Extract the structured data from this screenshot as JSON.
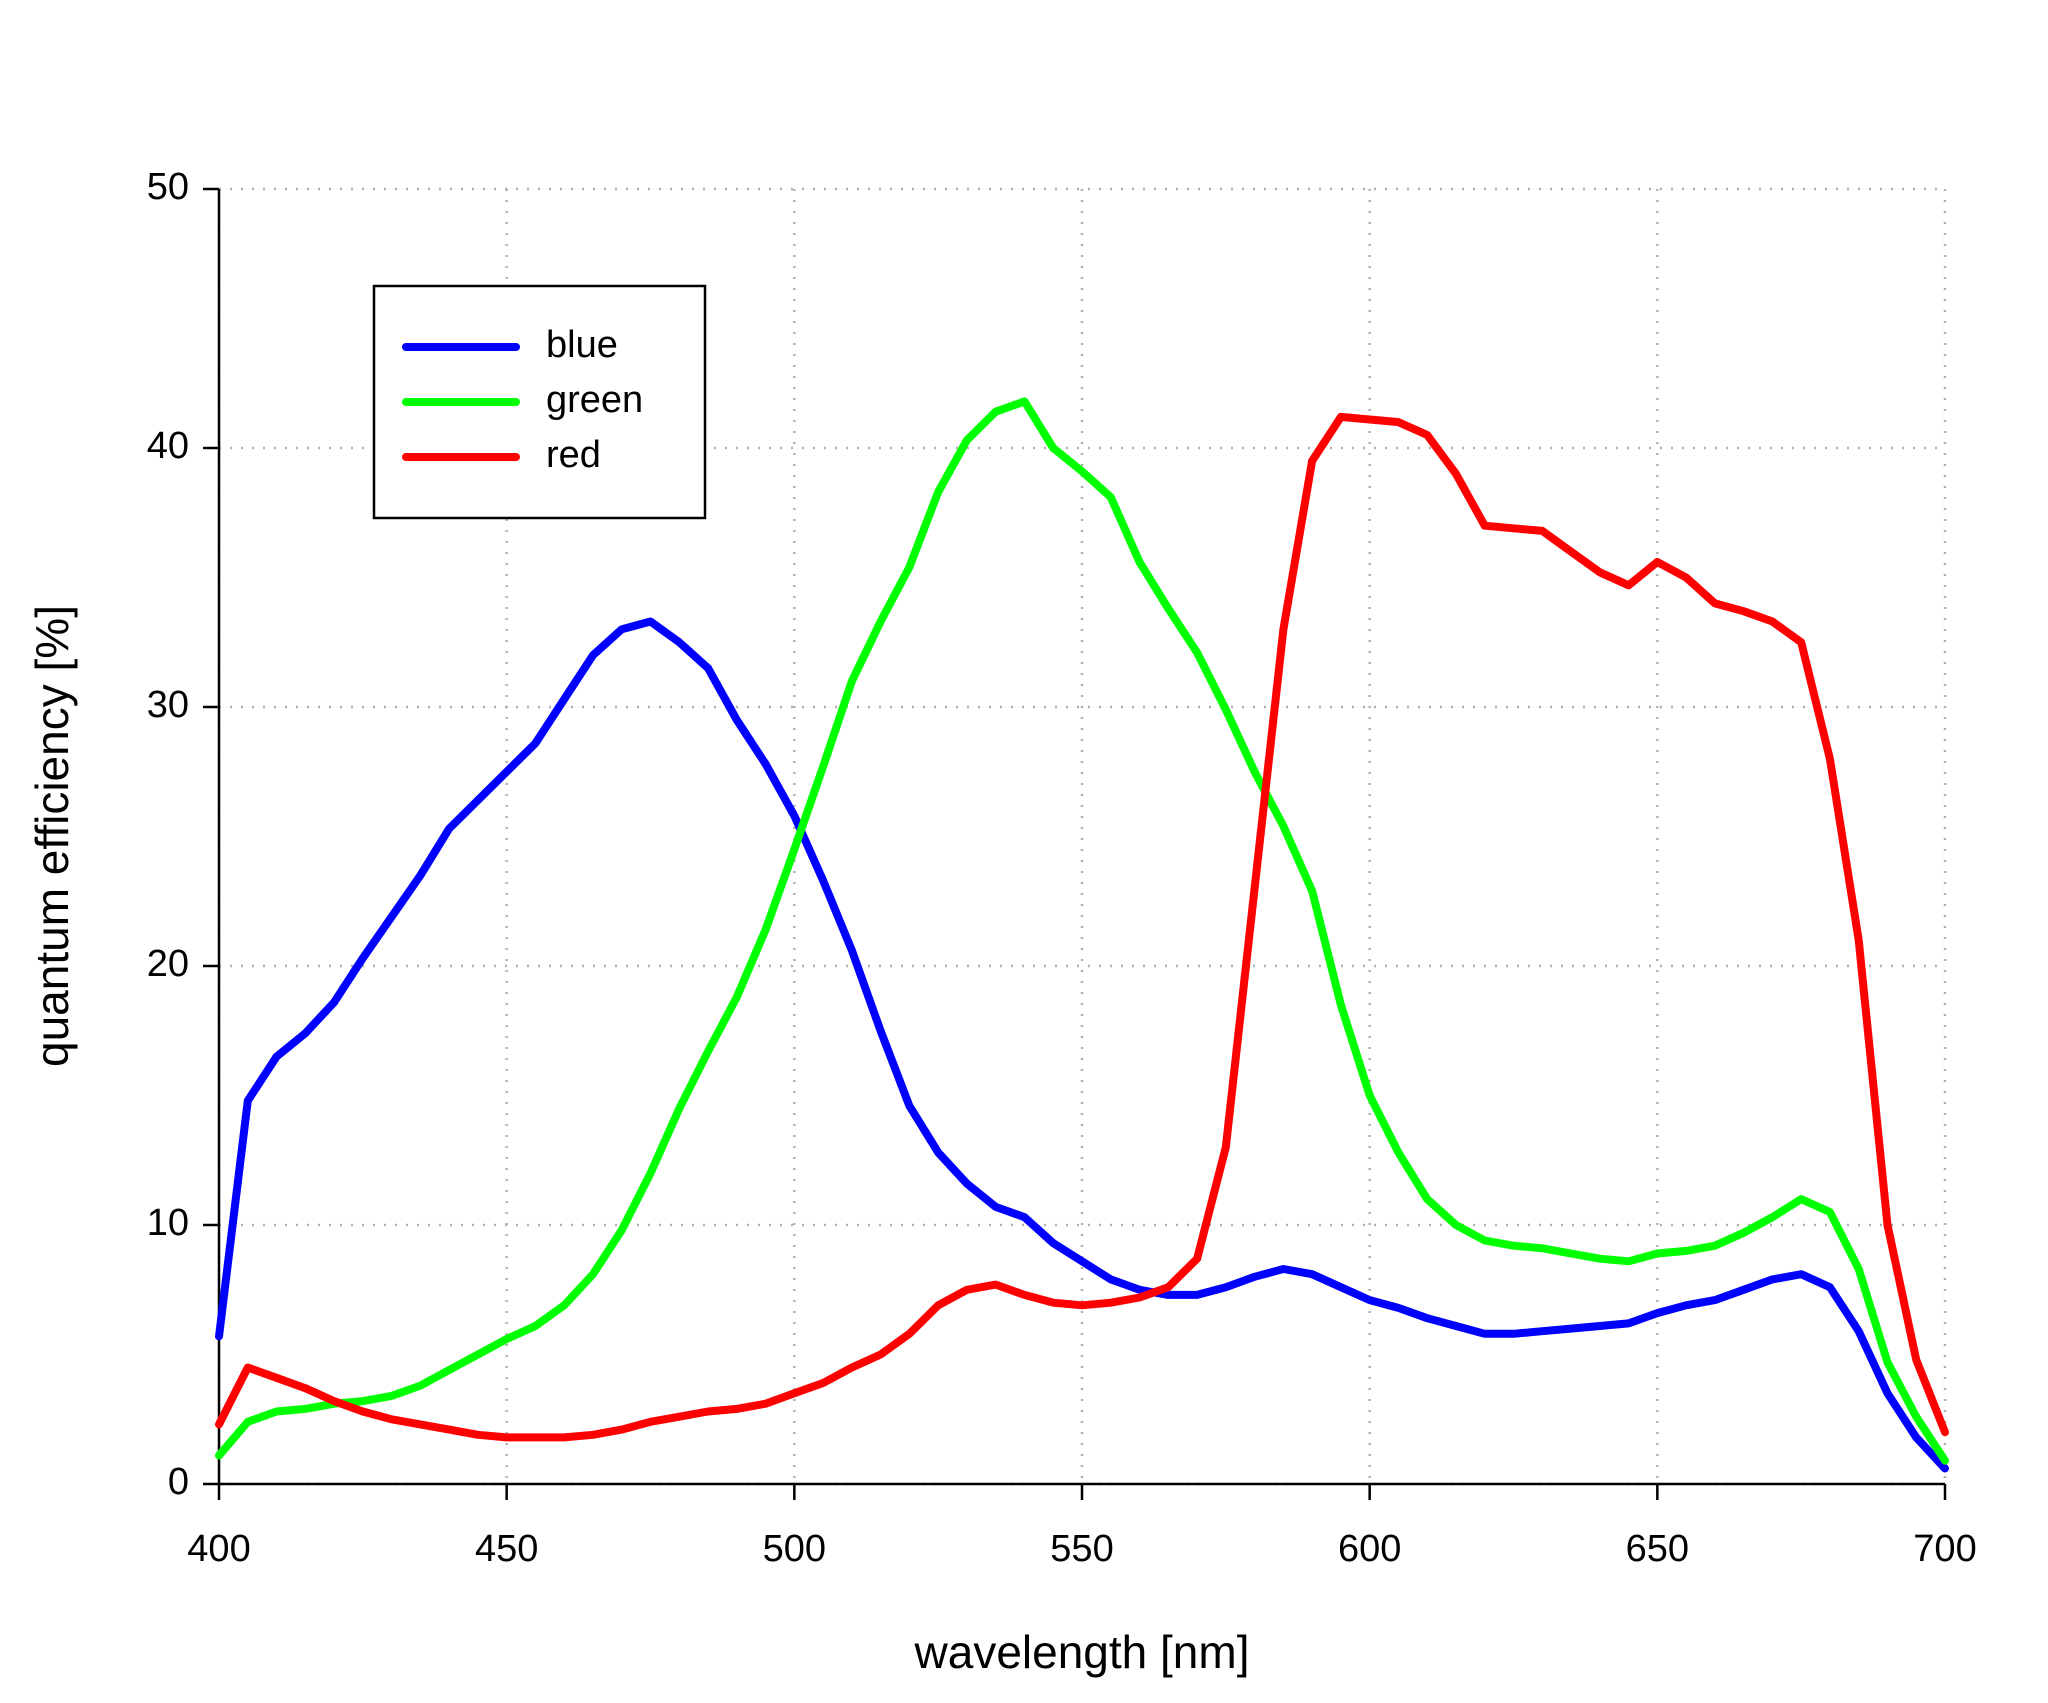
{
  "chart_data": {
    "type": "line",
    "xlabel": "wavelength [nm]",
    "ylabel": "quantum efficiency [%]",
    "x": [
      400,
      405,
      410,
      415,
      420,
      425,
      430,
      435,
      440,
      445,
      450,
      455,
      460,
      465,
      470,
      475,
      480,
      485,
      490,
      495,
      500,
      505,
      510,
      515,
      520,
      525,
      530,
      535,
      540,
      545,
      550,
      555,
      560,
      565,
      570,
      575,
      580,
      585,
      590,
      595,
      600,
      605,
      610,
      615,
      620,
      625,
      630,
      635,
      640,
      645,
      650,
      655,
      660,
      665,
      670,
      675,
      680,
      685,
      690,
      695,
      700
    ],
    "series": [
      {
        "name": "blue",
        "color": "#0000ff",
        "values": [
          5.7,
          14.8,
          16.5,
          17.4,
          18.6,
          20.3,
          21.9,
          23.5,
          25.3,
          26.4,
          27.5,
          28.6,
          30.3,
          32.0,
          33.0,
          33.3,
          32.5,
          31.5,
          29.5,
          27.8,
          25.8,
          23.3,
          20.6,
          17.5,
          14.6,
          12.8,
          11.6,
          10.7,
          10.3,
          9.3,
          8.6,
          7.9,
          7.5,
          7.3,
          7.3,
          7.6,
          8.0,
          8.3,
          8.1,
          7.6,
          7.1,
          6.8,
          6.4,
          6.1,
          5.8,
          5.8,
          5.9,
          6.0,
          6.1,
          6.2,
          6.6,
          6.9,
          7.1,
          7.5,
          7.9,
          8.1,
          7.6,
          5.9,
          3.5,
          1.8,
          0.6
        ]
      },
      {
        "name": "green",
        "color": "#00ff00",
        "values": [
          1.1,
          2.4,
          2.8,
          2.9,
          3.1,
          3.2,
          3.4,
          3.8,
          4.4,
          5.0,
          5.6,
          6.1,
          6.9,
          8.1,
          9.8,
          12.0,
          14.5,
          16.7,
          18.8,
          21.4,
          24.5,
          27.7,
          31.0,
          33.3,
          35.4,
          38.3,
          40.3,
          41.4,
          41.8,
          40.0,
          39.1,
          38.1,
          35.6,
          33.8,
          32.1,
          29.9,
          27.5,
          25.4,
          22.9,
          18.5,
          15.0,
          12.8,
          11.0,
          10.0,
          9.4,
          9.2,
          9.1,
          8.9,
          8.7,
          8.6,
          8.9,
          9.0,
          9.2,
          9.7,
          10.3,
          11.0,
          10.5,
          8.3,
          4.7,
          2.6,
          0.9
        ]
      },
      {
        "name": "red",
        "color": "#ff0000",
        "values": [
          2.3,
          4.5,
          4.1,
          3.7,
          3.2,
          2.8,
          2.5,
          2.3,
          2.1,
          1.9,
          1.8,
          1.8,
          1.8,
          1.9,
          2.1,
          2.4,
          2.6,
          2.8,
          2.9,
          3.1,
          3.5,
          3.9,
          4.5,
          5.0,
          5.8,
          6.9,
          7.5,
          7.7,
          7.3,
          7.0,
          6.9,
          7.0,
          7.2,
          7.6,
          8.7,
          13.0,
          23.0,
          33.0,
          39.5,
          41.2,
          41.1,
          41.0,
          40.5,
          39.0,
          37.0,
          36.9,
          36.8,
          36.0,
          35.2,
          34.7,
          35.6,
          35.0,
          34.0,
          33.7,
          33.3,
          32.5,
          28.0,
          21.0,
          10.0,
          4.8,
          2.0
        ]
      }
    ],
    "xlim": [
      400,
      700
    ],
    "xticks": [
      400,
      450,
      500,
      550,
      600,
      650,
      700
    ],
    "ylim": [
      0,
      50
    ],
    "yticks": [
      0,
      10,
      20,
      30,
      40,
      50
    ],
    "grid": true,
    "legend": "upper left"
  }
}
